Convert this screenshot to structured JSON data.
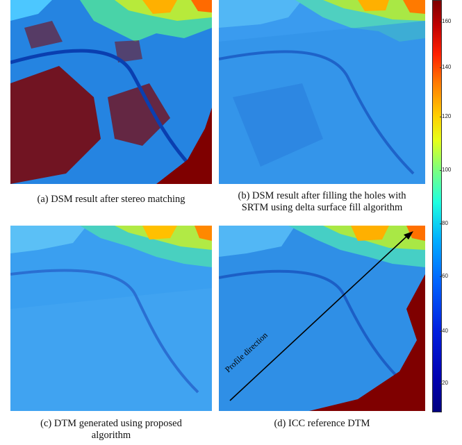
{
  "captions": {
    "a": "(a) DSM result after stereo matching",
    "b_line1": "(b) DSM result after filling the holes with",
    "b_line2": "SRTM using delta surface fill algorithm",
    "c_line1": "(c) DTM generated using proposed",
    "c_line2": "algorithm",
    "d": "(d) ICC reference DTM"
  },
  "annotation": {
    "profile_label": "Profile direction"
  },
  "colorbar": {
    "ticks": [
      "160",
      "140",
      "120",
      "100",
      "80",
      "60",
      "40",
      "20"
    ],
    "colormap": "jet",
    "low_color": "#000080",
    "high_color": "#7f0000"
  },
  "colors": {
    "base_blue": "#2f8fe6",
    "land_high": "#ffd000",
    "sea_red": "#7f0000"
  }
}
